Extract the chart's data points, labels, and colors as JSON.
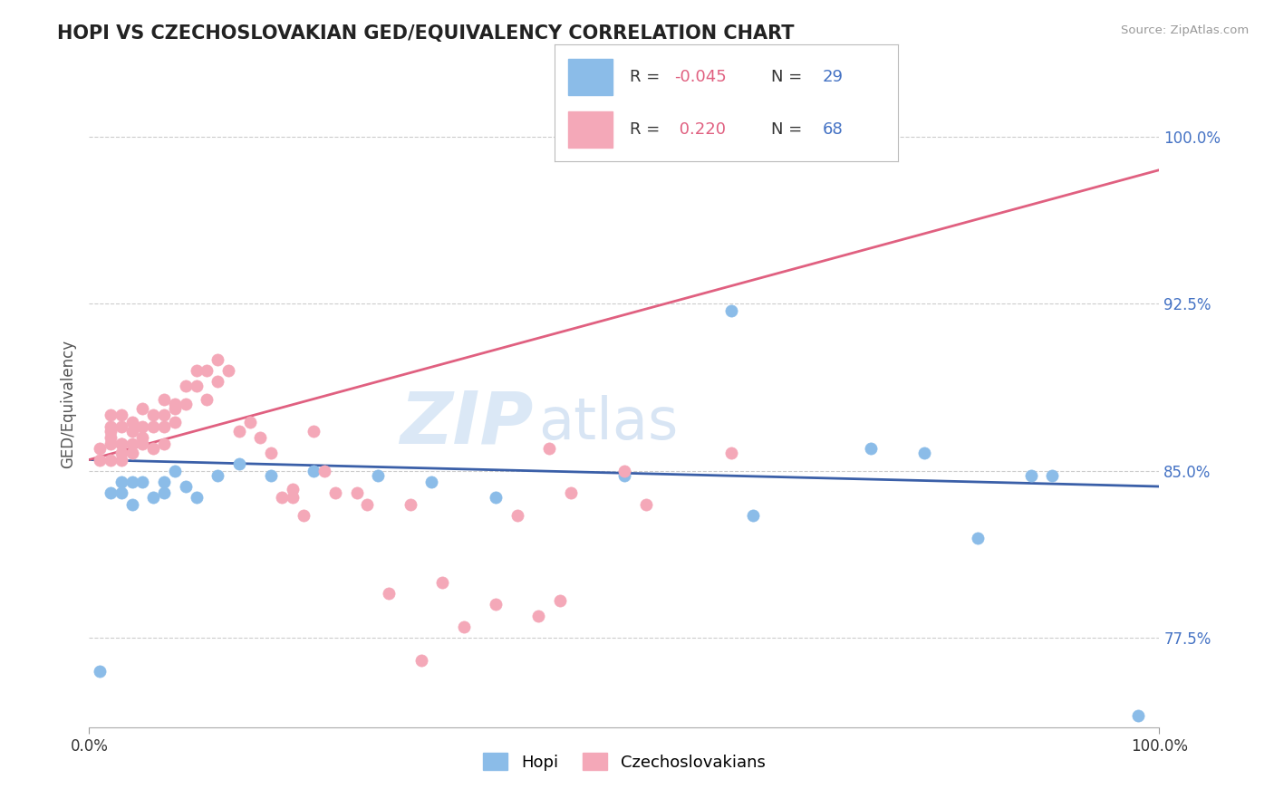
{
  "title": "HOPI VS CZECHOSLOVAKIAN GED/EQUIVALENCY CORRELATION CHART",
  "source": "Source: ZipAtlas.com",
  "ylabel": "GED/Equivalency",
  "yticks": [
    0.775,
    0.85,
    0.925,
    1.0
  ],
  "ytick_labels": [
    "77.5%",
    "85.0%",
    "92.5%",
    "100.0%"
  ],
  "xlim": [
    0.0,
    1.0
  ],
  "ylim": [
    0.735,
    1.025
  ],
  "legend_labels": [
    "Hopi",
    "Czechoslovakians"
  ],
  "hopi_color": "#8bbce8",
  "czech_color": "#f4a8b8",
  "hopi_line_color": "#3a5fa8",
  "czech_line_color": "#e06080",
  "hopi_R": -0.045,
  "hopi_N": 29,
  "czech_R": 0.22,
  "czech_N": 68,
  "hopi_line_y0": 0.855,
  "hopi_line_y1": 0.843,
  "czech_line_y0": 0.855,
  "czech_line_y1": 0.985,
  "watermark1": "ZIP",
  "watermark2": "atlas",
  "background_color": "#ffffff",
  "grid_color": "#cccccc",
  "hopi_x": [
    0.01,
    0.02,
    0.03,
    0.03,
    0.04,
    0.04,
    0.05,
    0.06,
    0.07,
    0.07,
    0.08,
    0.09,
    0.1,
    0.12,
    0.14,
    0.17,
    0.21,
    0.27,
    0.32,
    0.38,
    0.5,
    0.6,
    0.62,
    0.73,
    0.78,
    0.83,
    0.88,
    0.9,
    0.98
  ],
  "hopi_y": [
    0.76,
    0.84,
    0.845,
    0.84,
    0.845,
    0.835,
    0.845,
    0.838,
    0.845,
    0.84,
    0.85,
    0.843,
    0.838,
    0.848,
    0.853,
    0.848,
    0.85,
    0.848,
    0.845,
    0.838,
    0.848,
    0.922,
    0.83,
    0.86,
    0.858,
    0.82,
    0.848,
    0.848,
    0.74
  ],
  "czech_x": [
    0.01,
    0.01,
    0.02,
    0.02,
    0.02,
    0.02,
    0.02,
    0.02,
    0.03,
    0.03,
    0.03,
    0.03,
    0.03,
    0.03,
    0.04,
    0.04,
    0.04,
    0.04,
    0.05,
    0.05,
    0.05,
    0.05,
    0.06,
    0.06,
    0.06,
    0.07,
    0.07,
    0.07,
    0.07,
    0.08,
    0.08,
    0.08,
    0.09,
    0.09,
    0.1,
    0.1,
    0.11,
    0.11,
    0.12,
    0.12,
    0.13,
    0.14,
    0.15,
    0.16,
    0.17,
    0.18,
    0.19,
    0.19,
    0.2,
    0.21,
    0.22,
    0.23,
    0.25,
    0.26,
    0.28,
    0.3,
    0.31,
    0.33,
    0.35,
    0.38,
    0.4,
    0.42,
    0.43,
    0.44,
    0.45,
    0.5,
    0.52,
    0.6
  ],
  "czech_y": [
    0.855,
    0.86,
    0.875,
    0.868,
    0.862,
    0.855,
    0.87,
    0.865,
    0.875,
    0.87,
    0.862,
    0.858,
    0.855,
    0.862,
    0.872,
    0.868,
    0.862,
    0.858,
    0.878,
    0.87,
    0.865,
    0.862,
    0.875,
    0.87,
    0.86,
    0.882,
    0.875,
    0.87,
    0.862,
    0.88,
    0.878,
    0.872,
    0.888,
    0.88,
    0.895,
    0.888,
    0.895,
    0.882,
    0.9,
    0.89,
    0.895,
    0.868,
    0.872,
    0.865,
    0.858,
    0.838,
    0.842,
    0.838,
    0.83,
    0.868,
    0.85,
    0.84,
    0.84,
    0.835,
    0.795,
    0.835,
    0.765,
    0.8,
    0.78,
    0.79,
    0.83,
    0.785,
    0.86,
    0.792,
    0.84,
    0.85,
    0.835,
    0.858
  ]
}
